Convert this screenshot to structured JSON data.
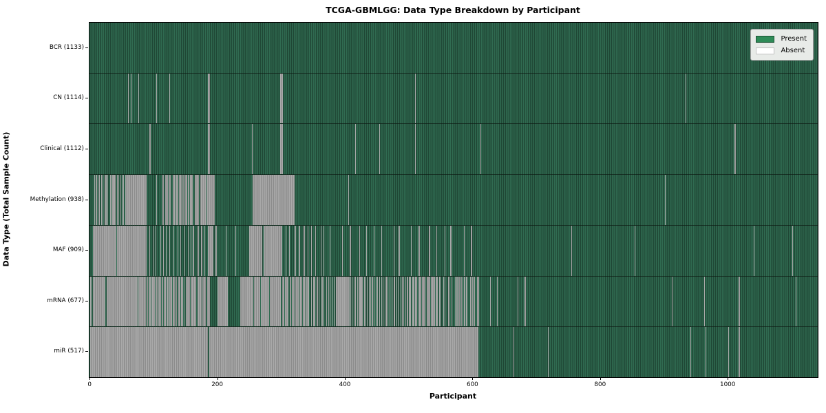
{
  "title": "TCGA-GBMLGG: Data Type Breakdown by Participant",
  "axes": {
    "x_label": "Participant",
    "y_label": "Data Type (Total Sample Count)",
    "x_ticks": [
      0,
      200,
      400,
      600,
      800,
      1000
    ],
    "x_max": 1137
  },
  "legend": {
    "items": [
      {
        "label": "Present",
        "color": "#2e8b57",
        "border": "rgba(0,0,0,0.4)"
      },
      {
        "label": "Absent",
        "color": "#ffffff",
        "border": "rgba(0,0,0,0.25)"
      }
    ]
  },
  "colors": {
    "present_swatch": "#2e8b57",
    "absent_swatch": "#ffffff",
    "present_stripe_light": "#306b51",
    "present_stripe_dark": "#1f4735",
    "absent_stripe_light": "#a9a9a9",
    "absent_stripe_dark": "#8c8c8c",
    "legend_background": "#e8ebe8",
    "frame": "#000000"
  },
  "chart_data": {
    "type": "heatmap",
    "title": "TCGA-GBMLGG: Data Type Breakdown by Participant",
    "xlabel": "Participant",
    "ylabel": "Data Type (Total Sample Count)",
    "x_range": [
      0,
      1137
    ],
    "x_ticks": [
      0,
      200,
      400,
      600,
      800,
      1000
    ],
    "legend_entries": [
      "Present",
      "Absent"
    ],
    "segment_key": "segments are [from_participant, to_participant, state, present_fraction?] where state P=present(green), A=absent(gray), M=mixed thin stripes",
    "rows": [
      {
        "name": "BCR",
        "label": "BCR (1133)",
        "present_count": 1133,
        "segments": [
          [
            0,
            1137,
            "P"
          ]
        ]
      },
      {
        "name": "CN",
        "label": "CN (1114)",
        "present_count": 1114,
        "segments": [
          [
            0,
            59,
            "P"
          ],
          [
            59,
            60,
            "A"
          ],
          [
            60,
            63,
            "P"
          ],
          [
            63,
            64,
            "A"
          ],
          [
            64,
            75,
            "P"
          ],
          [
            75,
            76,
            "A"
          ],
          [
            76,
            103,
            "P"
          ],
          [
            103,
            104,
            "A"
          ],
          [
            104,
            124,
            "P"
          ],
          [
            124,
            125,
            "A"
          ],
          [
            125,
            184,
            "P"
          ],
          [
            184,
            188,
            "A"
          ],
          [
            188,
            297,
            "P"
          ],
          [
            297,
            302,
            "A"
          ],
          [
            302,
            509,
            "P"
          ],
          [
            509,
            510,
            "A"
          ],
          [
            510,
            933,
            "P"
          ],
          [
            933,
            934,
            "A"
          ],
          [
            934,
            1137,
            "P"
          ]
        ]
      },
      {
        "name": "Clinical",
        "label": "Clinical (1112)",
        "present_count": 1112,
        "segments": [
          [
            0,
            93,
            "P"
          ],
          [
            93,
            94,
            "A"
          ],
          [
            94,
            184,
            "P"
          ],
          [
            184,
            188,
            "A"
          ],
          [
            188,
            253,
            "P"
          ],
          [
            253,
            254,
            "A"
          ],
          [
            254,
            297,
            "P"
          ],
          [
            297,
            302,
            "A"
          ],
          [
            302,
            415,
            "P"
          ],
          [
            415,
            416,
            "A"
          ],
          [
            416,
            453,
            "P"
          ],
          [
            453,
            454,
            "A"
          ],
          [
            454,
            509,
            "P"
          ],
          [
            509,
            510,
            "A"
          ],
          [
            510,
            611,
            "P"
          ],
          [
            611,
            612,
            "A"
          ],
          [
            612,
            1010,
            "P"
          ],
          [
            1010,
            1011,
            "A"
          ],
          [
            1011,
            1137,
            "P"
          ]
        ]
      },
      {
        "name": "Methylation",
        "label": "Methylation (938)",
        "present_count": 938,
        "segments": [
          [
            0,
            6,
            "P"
          ],
          [
            6,
            55,
            "M",
            0.5
          ],
          [
            55,
            87,
            "A"
          ],
          [
            87,
            116,
            "M",
            0.9
          ],
          [
            116,
            162,
            "M",
            0.3
          ],
          [
            162,
            195,
            "M",
            0.12
          ],
          [
            195,
            254,
            "P"
          ],
          [
            254,
            320,
            "A"
          ],
          [
            320,
            404,
            "P"
          ],
          [
            404,
            405,
            "A"
          ],
          [
            405,
            900,
            "P"
          ],
          [
            900,
            901,
            "A"
          ],
          [
            901,
            1137,
            "P"
          ]
        ]
      },
      {
        "name": "MAF",
        "label": "MAF (909)",
        "present_count": 909,
        "segments": [
          [
            0,
            3,
            "P"
          ],
          [
            3,
            87,
            "M",
            0.03
          ],
          [
            87,
            184,
            "M",
            0.75
          ],
          [
            184,
            193,
            "A"
          ],
          [
            193,
            249,
            "M",
            0.93
          ],
          [
            249,
            270,
            "A"
          ],
          [
            270,
            272,
            "P"
          ],
          [
            272,
            299,
            "A"
          ],
          [
            299,
            365,
            "M",
            0.8
          ],
          [
            365,
            602,
            "M",
            0.9
          ],
          [
            602,
            754,
            "P"
          ],
          [
            754,
            755,
            "A"
          ],
          [
            755,
            853,
            "P"
          ],
          [
            853,
            854,
            "A"
          ],
          [
            854,
            1040,
            "P"
          ],
          [
            1040,
            1041,
            "A"
          ],
          [
            1041,
            1100,
            "P"
          ],
          [
            1100,
            1101,
            "A"
          ],
          [
            1101,
            1137,
            "P"
          ]
        ]
      },
      {
        "name": "mRNA",
        "label": "mRNA (677)",
        "present_count": 677,
        "segments": [
          [
            0,
            87,
            "M",
            0.04
          ],
          [
            87,
            148,
            "M",
            0.3
          ],
          [
            148,
            188,
            "M",
            0.15
          ],
          [
            188,
            199,
            "P"
          ],
          [
            199,
            216,
            "A"
          ],
          [
            216,
            234,
            "P"
          ],
          [
            234,
            299,
            "M",
            0.08
          ],
          [
            299,
            342,
            "M",
            0.25
          ],
          [
            342,
            385,
            "M",
            0.6
          ],
          [
            385,
            407,
            "A"
          ],
          [
            407,
            506,
            "M",
            0.5
          ],
          [
            506,
            543,
            "M",
            0.2
          ],
          [
            543,
            570,
            "M",
            0.7
          ],
          [
            570,
            610,
            "M",
            0.45
          ],
          [
            610,
            626,
            "P"
          ],
          [
            626,
            627,
            "A"
          ],
          [
            627,
            637,
            "P"
          ],
          [
            637,
            638,
            "A"
          ],
          [
            638,
            670,
            "P"
          ],
          [
            670,
            671,
            "A"
          ],
          [
            671,
            681,
            "P"
          ],
          [
            681,
            682,
            "A"
          ],
          [
            682,
            911,
            "P"
          ],
          [
            911,
            912,
            "A"
          ],
          [
            912,
            962,
            "P"
          ],
          [
            962,
            963,
            "A"
          ],
          [
            963,
            1016,
            "P"
          ],
          [
            1016,
            1018,
            "A"
          ],
          [
            1018,
            1105,
            "P"
          ],
          [
            1105,
            1106,
            "A"
          ],
          [
            1106,
            1137,
            "P"
          ]
        ]
      },
      {
        "name": "miR",
        "label": "miR (517)",
        "present_count": 517,
        "segments": [
          [
            0,
            184,
            "A"
          ],
          [
            184,
            186,
            "P"
          ],
          [
            186,
            608,
            "A"
          ],
          [
            608,
            663,
            "P"
          ],
          [
            663,
            664,
            "A"
          ],
          [
            664,
            717,
            "P"
          ],
          [
            717,
            718,
            "A"
          ],
          [
            718,
            940,
            "P"
          ],
          [
            940,
            941,
            "A"
          ],
          [
            941,
            964,
            "P"
          ],
          [
            964,
            965,
            "A"
          ],
          [
            965,
            1000,
            "P"
          ],
          [
            1000,
            1001,
            "A"
          ],
          [
            1001,
            1016,
            "P"
          ],
          [
            1016,
            1018,
            "A"
          ],
          [
            1018,
            1137,
            "P"
          ]
        ]
      }
    ]
  }
}
